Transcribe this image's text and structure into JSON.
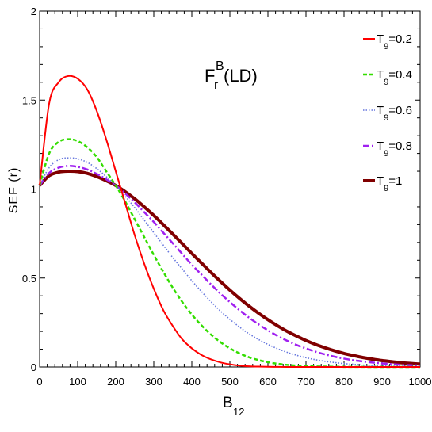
{
  "chart_data": {
    "type": "line",
    "annotation": {
      "main": "F",
      "sup": "B",
      "sub": "r",
      "suffix": " (LD)"
    },
    "xlabel": {
      "main": "B",
      "sub": "12"
    },
    "ylabel": "SEF (r)",
    "xlim": [
      0,
      1000
    ],
    "ylim": [
      0,
      2
    ],
    "xticks": [
      0,
      100,
      200,
      300,
      400,
      500,
      600,
      700,
      800,
      900,
      1000
    ],
    "yticks": [
      0,
      0.5,
      1,
      1.5,
      2
    ],
    "ytick_labels": [
      "0",
      "0.5",
      "1",
      "1.5",
      "2"
    ],
    "grid": false,
    "legend_position": "top-right",
    "x": [
      0,
      25,
      50,
      75,
      100,
      125,
      150,
      175,
      200,
      225,
      250,
      275,
      300,
      325,
      350,
      375,
      400,
      425,
      450,
      475,
      500,
      525,
      550,
      575,
      600,
      625,
      650,
      675,
      700,
      725,
      750,
      775,
      800,
      825,
      850,
      875,
      900,
      925,
      950,
      975,
      1000
    ],
    "series": [
      {
        "legend_sub": "9",
        "legend_prefix": "T",
        "legend_suffix": "=0.2",
        "color": "#ff0000",
        "style": "solid",
        "width": 2,
        "values": [
          1.02,
          1.48,
          1.6,
          1.635,
          1.62,
          1.56,
          1.44,
          1.28,
          1.1,
          0.92,
          0.74,
          0.58,
          0.44,
          0.32,
          0.23,
          0.155,
          0.105,
          0.068,
          0.043,
          0.026,
          0.015,
          0.008,
          0.004,
          0.002,
          0.001,
          0.0005,
          0,
          0,
          0,
          0,
          0,
          0,
          0,
          0,
          0,
          0,
          0,
          0,
          0,
          0,
          0
        ]
      },
      {
        "legend_sub": "9",
        "legend_prefix": "T",
        "legend_suffix": "=0.4",
        "color": "#33dd00",
        "style": "dashed",
        "width": 2.5,
        "values": [
          1.02,
          1.2,
          1.265,
          1.28,
          1.27,
          1.235,
          1.18,
          1.1,
          1.02,
          0.93,
          0.83,
          0.73,
          0.63,
          0.535,
          0.445,
          0.365,
          0.295,
          0.235,
          0.183,
          0.14,
          0.105,
          0.077,
          0.055,
          0.039,
          0.027,
          0.018,
          0.012,
          0.008,
          0.005,
          0.003,
          0.002,
          0.001,
          0.0008,
          0.0005,
          0.0003,
          0.0002,
          0.0001,
          0,
          0,
          0,
          0
        ]
      },
      {
        "legend_sub": "9",
        "legend_prefix": "T",
        "legend_suffix": "=0.6",
        "color": "#6677dd",
        "style": "dotted",
        "width": 1.6,
        "values": [
          1.02,
          1.12,
          1.165,
          1.175,
          1.17,
          1.15,
          1.115,
          1.07,
          1.02,
          0.96,
          0.895,
          0.825,
          0.755,
          0.685,
          0.615,
          0.55,
          0.485,
          0.425,
          0.368,
          0.315,
          0.268,
          0.225,
          0.187,
          0.155,
          0.127,
          0.103,
          0.083,
          0.066,
          0.052,
          0.041,
          0.032,
          0.025,
          0.019,
          0.015,
          0.011,
          0.008,
          0.006,
          0.0045,
          0.0033,
          0.0024,
          0.0017
        ]
      },
      {
        "legend_sub": "9",
        "legend_prefix": "T",
        "legend_suffix": "=0.8",
        "color": "#a020f0",
        "style": "dashdot",
        "width": 2.5,
        "values": [
          1.02,
          1.09,
          1.12,
          1.13,
          1.125,
          1.11,
          1.085,
          1.055,
          1.02,
          0.975,
          0.925,
          0.87,
          0.815,
          0.755,
          0.695,
          0.635,
          0.575,
          0.52,
          0.465,
          0.413,
          0.365,
          0.32,
          0.278,
          0.24,
          0.206,
          0.175,
          0.148,
          0.124,
          0.104,
          0.086,
          0.071,
          0.058,
          0.047,
          0.038,
          0.031,
          0.025,
          0.02,
          0.016,
          0.012,
          0.01,
          0.008
        ]
      },
      {
        "legend_sub": "9",
        "legend_prefix": "T",
        "legend_suffix": "=1",
        "color": "#800000",
        "style": "solid",
        "width": 4,
        "values": [
          1.02,
          1.075,
          1.095,
          1.1,
          1.098,
          1.088,
          1.07,
          1.047,
          1.02,
          0.985,
          0.945,
          0.9,
          0.852,
          0.8,
          0.747,
          0.693,
          0.638,
          0.585,
          0.532,
          0.481,
          0.432,
          0.386,
          0.343,
          0.303,
          0.266,
          0.232,
          0.201,
          0.174,
          0.149,
          0.127,
          0.108,
          0.091,
          0.076,
          0.064,
          0.053,
          0.044,
          0.036,
          0.03,
          0.024,
          0.02,
          0.016
        ]
      }
    ]
  }
}
